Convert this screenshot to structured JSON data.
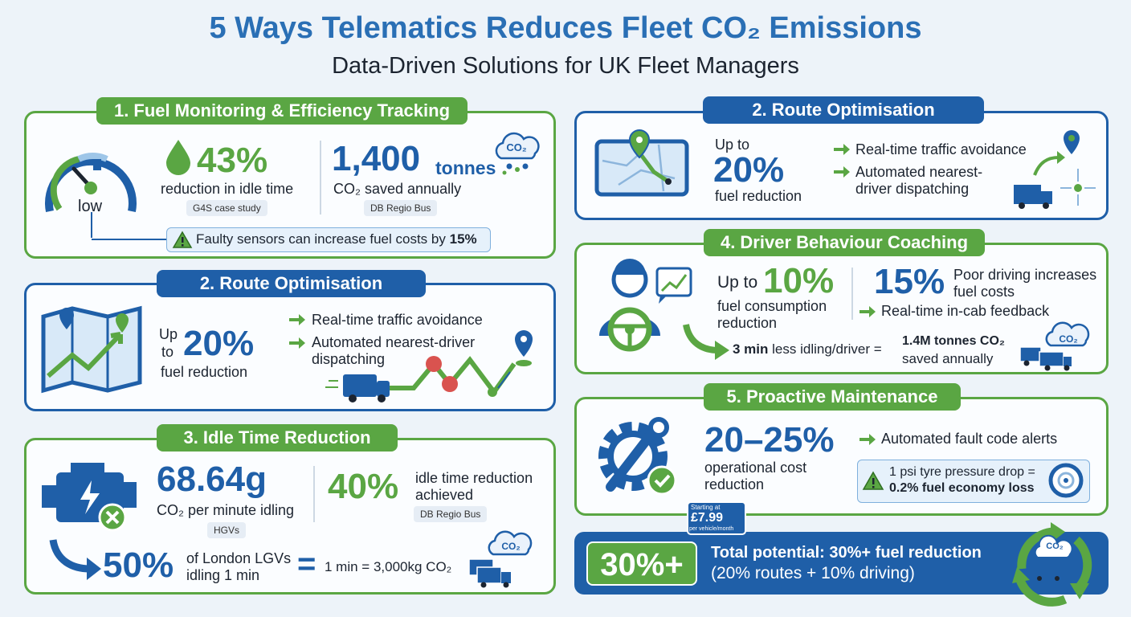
{
  "header": {
    "title": "5 Ways Telematics Reduces Fleet CO₂ Emissions",
    "subtitle": "Data-Driven Solutions for UK Fleet Managers"
  },
  "fuel_monitoring": {
    "title": "1. Fuel Monitoring & Efficiency Tracking",
    "gauge_label": "low",
    "stat_1": {
      "value": "43%",
      "label": "reduction in idle time",
      "source": "G4S case study"
    },
    "stat_2": {
      "value": "1,400",
      "unit": "tonnes",
      "label": "CO₂ saved annually",
      "source": "DB Regio Bus"
    },
    "cloud": "CO₂",
    "warning": {
      "text": "Faulty sensors can increase fuel costs by",
      "highlight": "15%"
    }
  },
  "route_left": {
    "title": "2. Route Optimisation",
    "prefix": [
      "Up",
      "to"
    ],
    "value": "20%",
    "label": "fuel reduction",
    "bullets": [
      "Real-time traffic avoidance",
      "Automated nearest-driver dispatching"
    ]
  },
  "idle_time": {
    "title": "3. Idle Time Reduction",
    "stat_1": {
      "value": "68.64g",
      "label": "CO₂ per minute idling",
      "source": "HGVs"
    },
    "stat_2": {
      "value": "40%",
      "label": "idle time reduction achieved",
      "source": "DB Regio Bus"
    },
    "stat_3": {
      "value": "50%",
      "label": "of London LGVs idling 1 min"
    },
    "equals": "=",
    "equation": "1 min = 3,000kg CO₂",
    "cloud": "CO₂"
  },
  "route_right": {
    "title": "2. Route Optimisation",
    "prefix": "Up to",
    "value": "20%",
    "label": "fuel reduction",
    "bullets": [
      "Real-time traffic avoidance",
      "Automated nearest-driver dispatching"
    ]
  },
  "driver_coaching": {
    "title": "4. Driver Behaviour Coaching",
    "prefix": "Up to",
    "value": "10%",
    "label": "fuel consumption reduction",
    "stat_2": {
      "value": "15%",
      "label": "Poor driving increases fuel costs"
    },
    "bullet": "Real-time in-cab feedback",
    "equation": {
      "left_bold": "3 min",
      "left": "less idling/driver =",
      "right_bold": "1.4M tonnes CO₂",
      "right": "saved annually"
    },
    "cloud": "CO₂"
  },
  "maintenance": {
    "title": "5. Proactive Maintenance",
    "value": "20–25%",
    "label": "operational cost reduction",
    "bullet": "Automated fault code alerts",
    "warning": {
      "text": "1 psi tyre pressure drop =",
      "highlight": "0.2% fuel economy loss"
    }
  },
  "total": {
    "badge": "30%+",
    "line_1": "Total potential: 30%+ fuel reduction",
    "line_2": "(20% routes + 10% driving)",
    "price_tag": {
      "intro": "Starting at",
      "price": "£7.99",
      "unit": "per vehicle/month"
    },
    "cloud": "CO₂"
  }
}
